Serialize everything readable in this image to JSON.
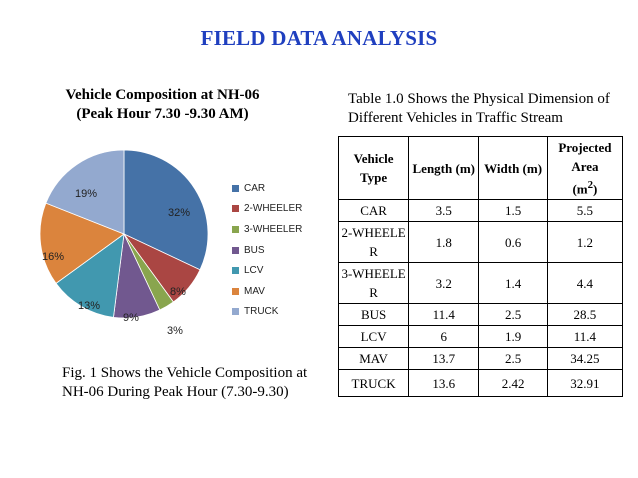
{
  "slide": {
    "title": "FIELD DATA ANALYSIS"
  },
  "chart": {
    "title_line1": "Vehicle Composition at NH-06",
    "title_line2": "(Peak Hour  7.30 -9.30 AM)",
    "caption": "Fig. 1 Shows the Vehicle Composition at NH-06 During  Peak Hour (7.30-9.30)"
  },
  "chart_data": {
    "type": "pie",
    "title": "Vehicle Composition at NH-06 (Peak Hour 7.30 -9.30 AM)",
    "legend_position": "right",
    "slices": [
      {
        "label": "CAR",
        "value": 32,
        "display": "32%",
        "color": "#4572a7"
      },
      {
        "label": "2-WHEELER",
        "value": 8,
        "display": "8%",
        "color": "#aa4643"
      },
      {
        "label": "3-WHEELER",
        "value": 3,
        "display": "3%",
        "color": "#89a54e"
      },
      {
        "label": "BUS",
        "value": 9,
        "display": "9%",
        "color": "#71588f"
      },
      {
        "label": "LCV",
        "value": 13,
        "display": "13%",
        "color": "#4198af"
      },
      {
        "label": "MAV",
        "value": 16,
        "display": "16%",
        "color": "#db843d"
      },
      {
        "label": "TRUCK",
        "value": 19,
        "display": "19%",
        "color": "#93a9cf"
      }
    ]
  },
  "table": {
    "caption": "Table 1.0 Shows the Physical Dimension of  Different Vehicles in Traffic Stream",
    "headers": {
      "type": "Vehicle Type",
      "length": "Length (m)",
      "width": "Width (m)",
      "area_main": "Projected Area",
      "area_unit": "(m",
      "area_sup": "2",
      "area_close": ")"
    },
    "rows": [
      {
        "type": "CAR",
        "length": "3.5",
        "width": "1.5",
        "area": "5.5"
      },
      {
        "type": "2-WHEELER",
        "length": "1.8",
        "width": "0.6",
        "area": "1.2"
      },
      {
        "type": "3-WHEELER",
        "length": "3.2",
        "width": "1.4",
        "area": "4.4"
      },
      {
        "type": "BUS",
        "length": "11.4",
        "width": "2.5",
        "area": "28.5"
      },
      {
        "type": "LCV",
        "length": "6",
        "width": "1.9",
        "area": "11.4"
      },
      {
        "type": "MAV",
        "length": "13.7",
        "width": "2.5",
        "area": "34.25"
      },
      {
        "type": "TRUCK",
        "length": "13.6",
        "width": "2.42",
        "area": "32.91"
      }
    ]
  }
}
